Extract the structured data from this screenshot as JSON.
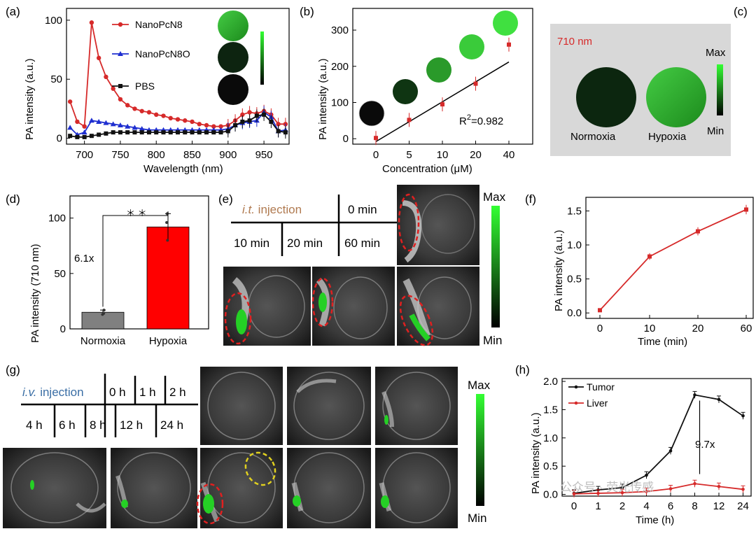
{
  "panels": {
    "a": {
      "label": "(a)"
    },
    "b": {
      "label": "(b)"
    },
    "c": {
      "label": "(c)",
      "wavelength": "710 nm",
      "max": "Max",
      "min": "Min",
      "circle_labels": [
        "Normoxia",
        "Hypoxia"
      ]
    },
    "d": {
      "label": "(d)"
    },
    "e": {
      "label": "(e)",
      "injection_prefix": "i.t.",
      "injection_suffix": " injection",
      "times": [
        "0 min",
        "10 min",
        "20 min",
        "60 min"
      ],
      "max": "Max",
      "min": "Min"
    },
    "f": {
      "label": "(f)"
    },
    "g": {
      "label": "(g)",
      "injection_prefix": "i.v.",
      "injection_suffix": " injection",
      "times": [
        "0 h",
        "1 h",
        "2 h",
        "4 h",
        "6 h",
        "8 h",
        "12 h",
        "24 h"
      ],
      "max": "Max",
      "min": "Min"
    },
    "h": {
      "label": "(h)"
    }
  },
  "watermark": "公众号 · 荧光传感",
  "colors": {
    "red": "#d62a2a",
    "blue": "#1f2fd0",
    "black": "#111111",
    "green": "#2ee62e",
    "panel_bg": "#d8d8d8"
  },
  "chart_data": [
    {
      "id": "a",
      "type": "line",
      "xlabel": "Wavelength (nm)",
      "ylabel": "PA intensity (a.u.)",
      "xlim": [
        675,
        985
      ],
      "ylim": [
        -5,
        110
      ],
      "xticks": [
        700,
        750,
        800,
        850,
        900,
        950
      ],
      "yticks": [
        0,
        50,
        100
      ],
      "legend": "top-left",
      "series": [
        {
          "name": "NanoPcN8",
          "color": "#d62a2a",
          "marker": "circle",
          "x": [
            680,
            690,
            700,
            710,
            720,
            730,
            740,
            750,
            760,
            770,
            780,
            790,
            800,
            810,
            820,
            830,
            840,
            850,
            860,
            870,
            880,
            890,
            900,
            910,
            920,
            930,
            940,
            950,
            960,
            970,
            980
          ],
          "y": [
            31,
            14,
            10,
            98,
            68,
            52,
            42,
            33,
            28,
            25,
            23,
            22,
            20,
            19,
            17,
            16,
            15,
            14,
            12,
            11,
            10,
            10,
            11,
            15,
            20,
            22,
            21,
            23,
            20,
            12,
            12
          ]
        },
        {
          "name": "NanoPcN8O",
          "color": "#1f2fd0",
          "marker": "triangle",
          "x": [
            680,
            690,
            700,
            710,
            720,
            730,
            740,
            750,
            760,
            770,
            780,
            790,
            800,
            810,
            820,
            830,
            840,
            850,
            860,
            870,
            880,
            890,
            900,
            910,
            920,
            930,
            940,
            950,
            960,
            970,
            980
          ],
          "y": [
            9,
            3,
            5,
            15,
            14,
            13,
            12,
            11,
            10,
            9,
            8,
            7,
            7,
            7,
            7,
            7,
            7,
            7,
            7,
            7,
            7,
            7,
            8,
            11,
            13,
            14,
            15,
            22,
            18,
            6,
            7
          ]
        },
        {
          "name": "PBS",
          "color": "#111111",
          "marker": "square",
          "x": [
            680,
            690,
            700,
            710,
            720,
            730,
            740,
            750,
            760,
            770,
            780,
            790,
            800,
            810,
            820,
            830,
            840,
            850,
            860,
            870,
            880,
            890,
            900,
            910,
            920,
            930,
            940,
            950,
            960,
            970,
            980
          ],
          "y": [
            2,
            1,
            1,
            2,
            3,
            4,
            5,
            5,
            5,
            5,
            5,
            5,
            5,
            5,
            5,
            5,
            5,
            5,
            5,
            5,
            5,
            5,
            6,
            11,
            14,
            15,
            19,
            20,
            14,
            6,
            5
          ]
        }
      ]
    },
    {
      "id": "b",
      "type": "scatter",
      "xlabel": "Concentration (μM)",
      "ylabel": "PA intensity (a.u.)",
      "categories": [
        "0",
        "5",
        "10",
        "20",
        "40"
      ],
      "ylim": [
        -15,
        360
      ],
      "yticks": [
        0,
        100,
        200,
        300
      ],
      "values": [
        2,
        52,
        95,
        152,
        260
      ],
      "fit_line": [
        -8,
        212
      ],
      "annotation": "R2=0.982"
    },
    {
      "id": "d",
      "type": "bar",
      "ylabel": "PA intensity (710 nm)",
      "categories": [
        "Normoxia",
        "Hypoxia"
      ],
      "values": [
        15,
        92
      ],
      "errors": [
        2,
        12
      ],
      "points": [
        [
          14,
          17,
          13
        ],
        [
          80,
          104,
          96
        ]
      ],
      "colors": [
        "#808080",
        "#ff0000"
      ],
      "ylim": [
        0,
        120
      ],
      "yticks": [
        0,
        50,
        100
      ],
      "fold_label": "6.1x",
      "significance": "＊ ＊"
    },
    {
      "id": "f",
      "type": "line",
      "xlabel": "Time (min)",
      "ylabel": "PA intensity (a.u.)",
      "categories": [
        "0",
        "10",
        "20",
        "60"
      ],
      "values": [
        0.04,
        0.83,
        1.2,
        1.52
      ],
      "errors": [
        0.02,
        0.05,
        0.06,
        0.07
      ],
      "ylim": [
        -0.08,
        1.7
      ],
      "yticks": [
        0.0,
        0.5,
        1.0,
        1.5
      ],
      "color": "#d62a2a"
    },
    {
      "id": "h",
      "type": "line",
      "xlabel": "Time (h)",
      "ylabel": "PA intensity (a.u.)",
      "categories": [
        "0",
        "1",
        "2",
        "4",
        "6",
        "8",
        "12",
        "24"
      ],
      "ylim": [
        -0.03,
        2.05
      ],
      "yticks": [
        0.0,
        0.5,
        1.0,
        1.5,
        2.0
      ],
      "legend": "top-left",
      "fold_label": "9.7x",
      "series": [
        {
          "name": "Tumor",
          "color": "#111111",
          "values": [
            0.02,
            0.08,
            0.12,
            0.34,
            0.77,
            1.76,
            1.68,
            1.39
          ]
        },
        {
          "name": "Liver",
          "color": "#d62a2a",
          "values": [
            0.01,
            0.02,
            0.03,
            0.05,
            0.1,
            0.19,
            0.14,
            0.09
          ]
        }
      ]
    }
  ]
}
